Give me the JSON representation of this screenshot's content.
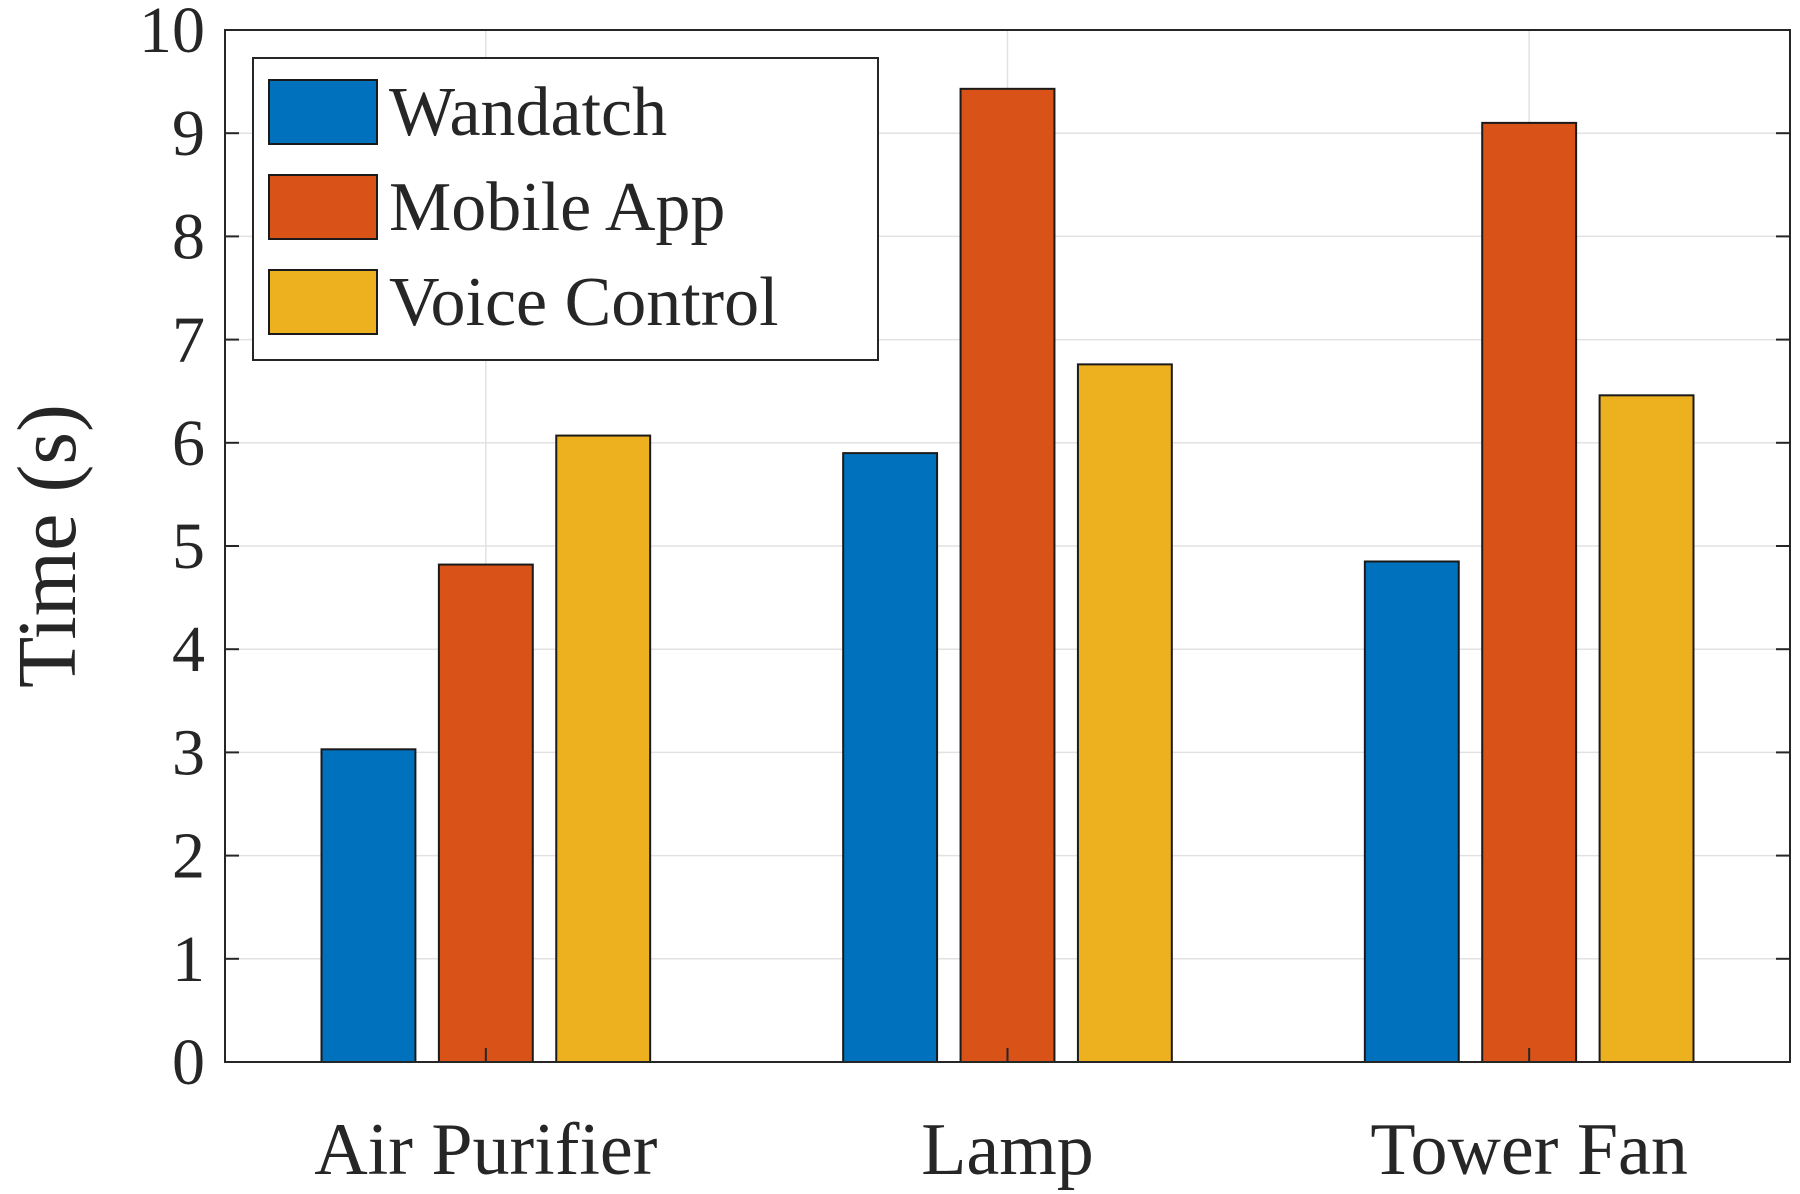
{
  "chart_data": {
    "type": "bar",
    "title": "",
    "xlabel": "",
    "ylabel": "Time (s)",
    "ylim": [
      0,
      10
    ],
    "yticks": [
      0,
      1,
      2,
      3,
      4,
      5,
      6,
      7,
      8,
      9,
      10
    ],
    "grid": true,
    "legend_position": "top-left",
    "categories": [
      "Air Purifier",
      "Lamp",
      "Tower Fan"
    ],
    "series": [
      {
        "name": "Wandatch",
        "color": "#0072BD",
        "values": [
          3.03,
          5.9,
          4.85
        ]
      },
      {
        "name": "Mobile App",
        "color": "#D95319",
        "values": [
          4.82,
          9.43,
          9.1
        ]
      },
      {
        "name": "Voice Control",
        "color": "#EDB120",
        "values": [
          6.07,
          6.76,
          6.46
        ]
      }
    ]
  }
}
